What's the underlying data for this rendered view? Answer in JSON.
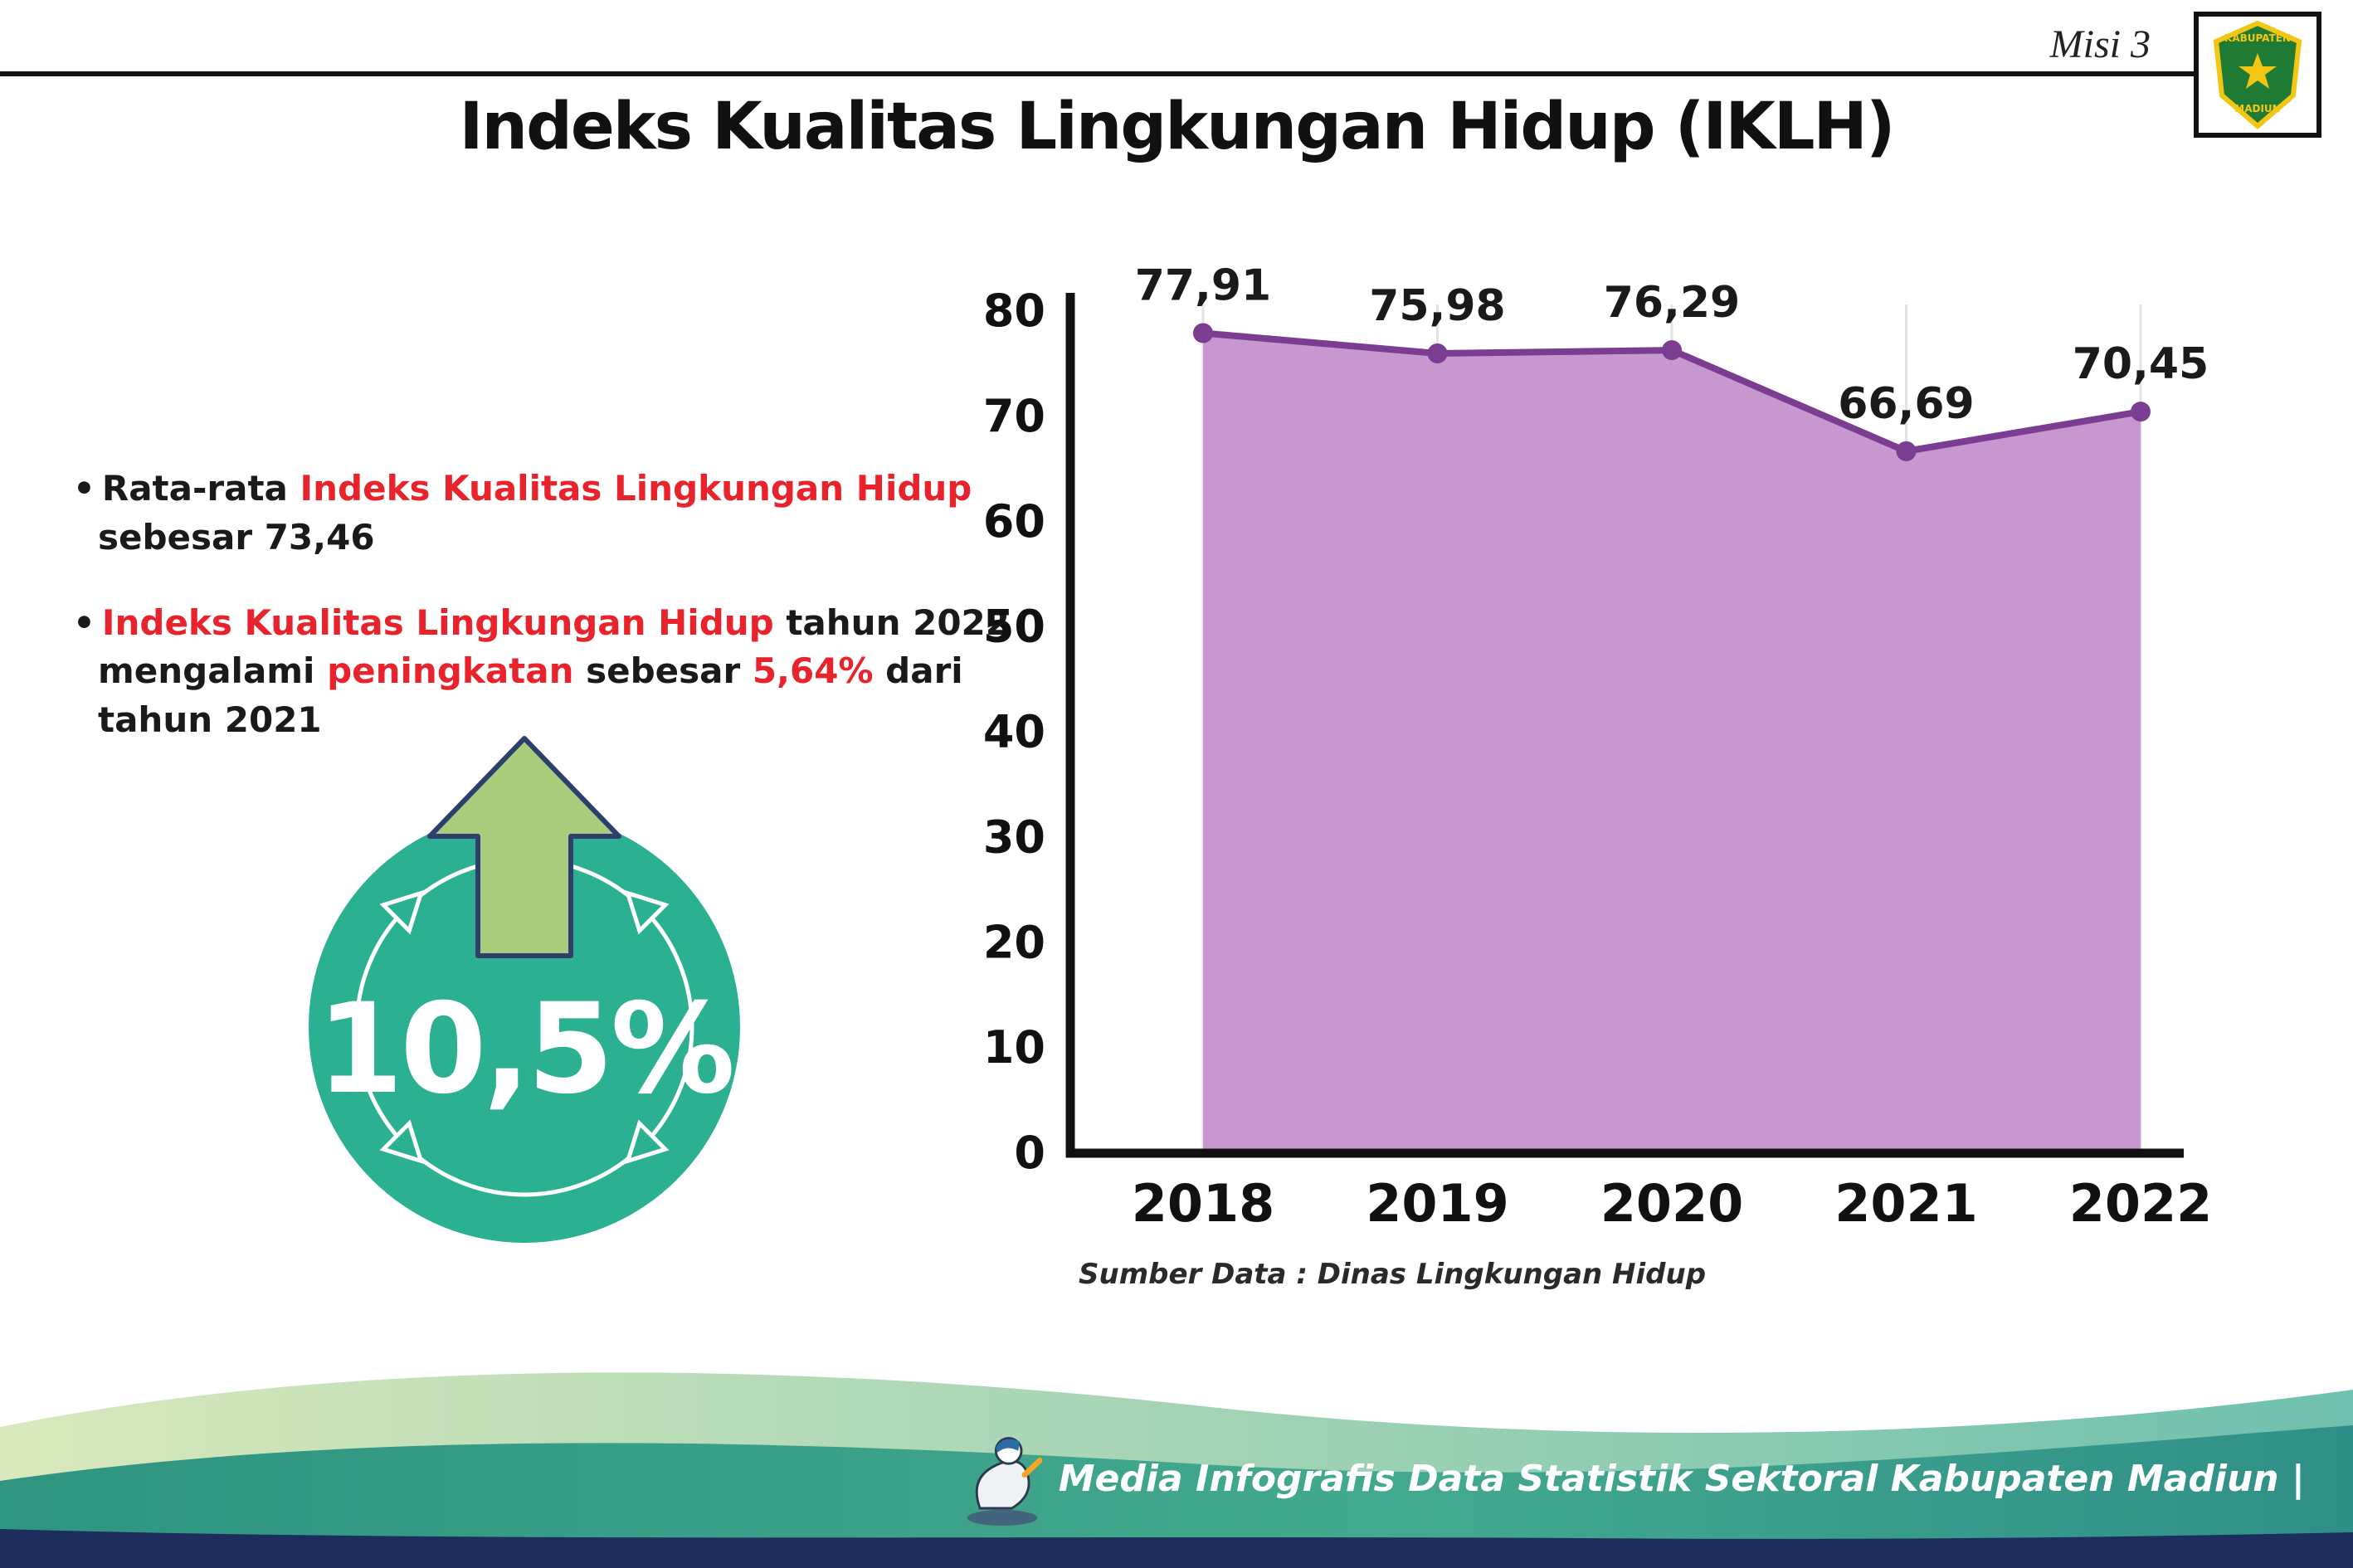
{
  "page": {
    "misi_label": "Misi 3",
    "title": "Indeks Kualitas Lingkungan Hidup (IKLH)",
    "logo_text_top": "KABUPATEN",
    "logo_text_bottom": "MADIUN"
  },
  "bullets": [
    {
      "segments": [
        {
          "text": "Rata-rata ",
          "red": false
        },
        {
          "text": "Indeks Kualitas Lingkungan Hidup",
          "red": true
        },
        {
          "text": " sebesar 73,46",
          "red": false
        }
      ]
    },
    {
      "segments": [
        {
          "text": "Indeks Kualitas Lingkungan Hidup",
          "red": true
        },
        {
          "text": " tahun 2022 mengalami ",
          "red": false
        },
        {
          "text": "peningkatan",
          "red": true
        },
        {
          "text": " sebesar ",
          "red": false
        },
        {
          "text": "5,64%",
          "red": true
        },
        {
          "text": " dari tahun 2021",
          "red": false
        }
      ]
    }
  ],
  "badge": {
    "value": "10,5%"
  },
  "chart_data": {
    "type": "area",
    "categories": [
      "2018",
      "2019",
      "2020",
      "2021",
      "2022"
    ],
    "values": [
      77.91,
      75.98,
      76.29,
      66.69,
      70.45
    ],
    "point_labels": [
      "77,91",
      "75,98",
      "76,29",
      "66,69",
      "70,45"
    ],
    "ylim": [
      0,
      80
    ],
    "yticks": [
      0,
      10,
      20,
      30,
      40,
      50,
      60,
      70,
      80
    ],
    "grid": "vertical-light",
    "legend": "none",
    "line_color": "#7a3d91",
    "fill_color": "#c698cf",
    "axis_color": "#111111",
    "source": "Sumber Data : Dinas Lingkungan Hidup"
  },
  "footer": {
    "text": "Media Infografis Data Statistik Sektoral Kabupaten Madiun |"
  },
  "colors": {
    "red": "#e8232b",
    "teal": "#2bb191",
    "arrow_green": "#a9cd7d",
    "navy": "#1d2e5c"
  }
}
